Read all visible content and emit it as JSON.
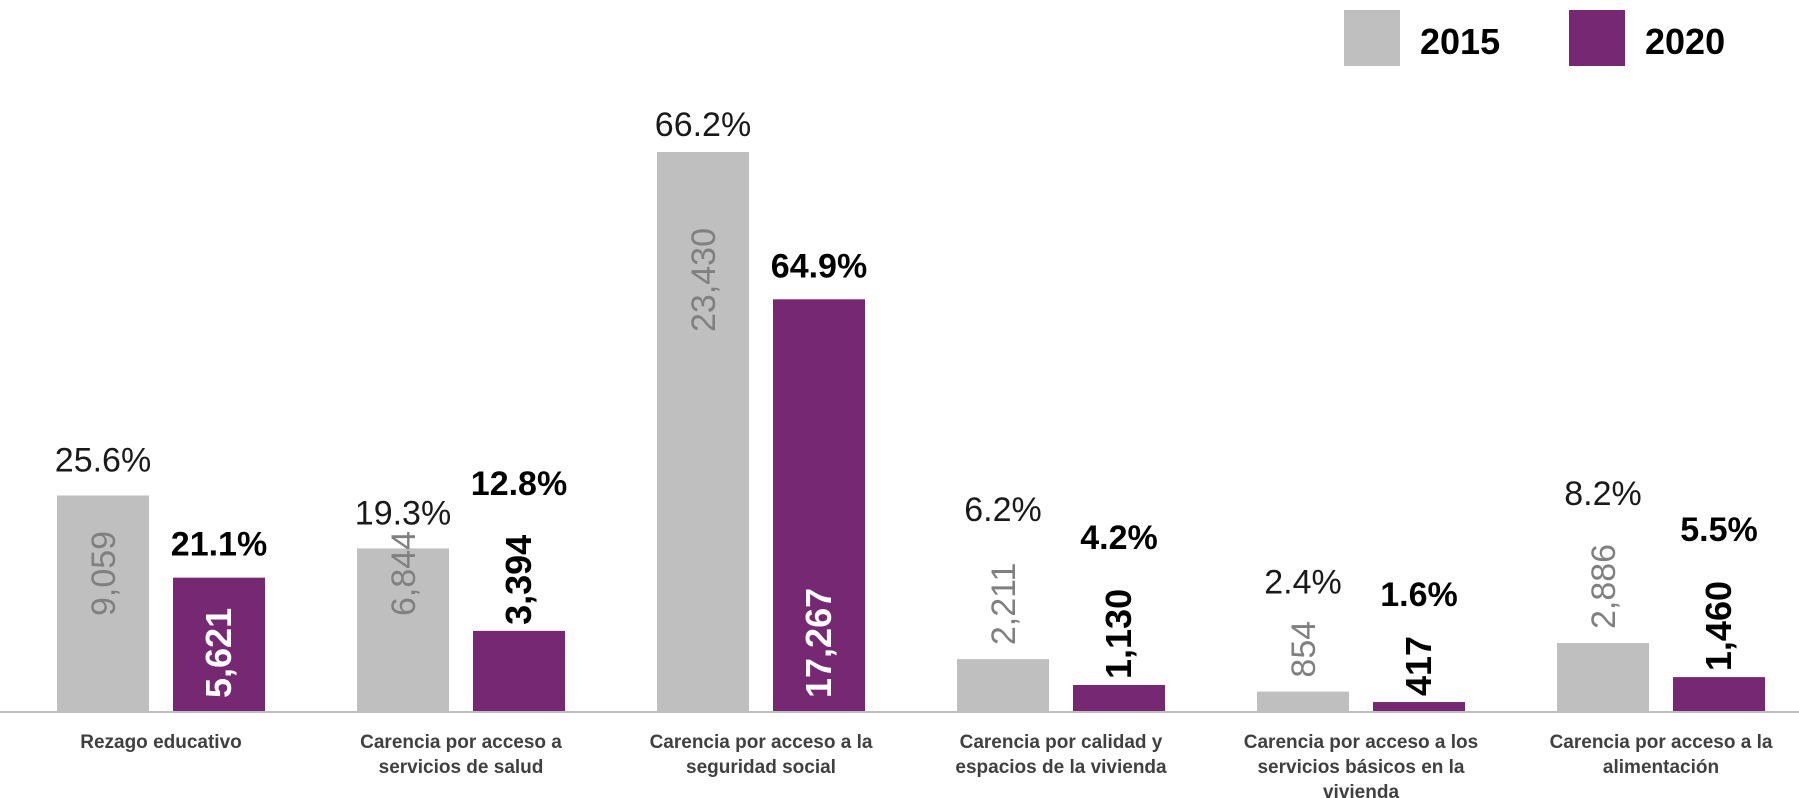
{
  "chart_data": {
    "type": "bar",
    "colors": {
      "2015": "#bfbfbf",
      "2020": "#772873"
    },
    "legend": {
      "position": "top-right"
    },
    "categories": [
      [
        "Rezago educativo"
      ],
      [
        "Carencia por acceso a",
        "servicios de salud"
      ],
      [
        "Carencia por acceso a la",
        "seguridad social"
      ],
      [
        "Carencia por calidad y",
        "espacios de la vivienda"
      ],
      [
        "Carencia por acceso a los",
        "servicios básicos en la",
        "vivienda"
      ],
      [
        "Carencia por acceso a la",
        "alimentación"
      ]
    ],
    "series": [
      {
        "name": "2015",
        "values": [
          9059,
          6844,
          23430,
          2211,
          854,
          2886
        ],
        "value_labels": [
          "9,059",
          "6,844",
          "23,430",
          "2,211",
          "854",
          "2,886"
        ],
        "percent_labels": [
          "25.6%",
          "19.3%",
          "66.2%",
          "6.2%",
          "2.4%",
          "8.2%"
        ]
      },
      {
        "name": "2020",
        "values": [
          5621,
          3394,
          17267,
          1130,
          417,
          1460
        ],
        "value_labels": [
          "5,621",
          "3,394",
          "17,267",
          "1,130",
          "417",
          "1,460"
        ],
        "percent_labels": [
          "21.1%",
          "12.8%",
          "64.9%",
          "4.2%",
          "1.6%",
          "5.5%"
        ]
      }
    ],
    "ylim": [
      0,
      23430
    ],
    "grid": false
  }
}
